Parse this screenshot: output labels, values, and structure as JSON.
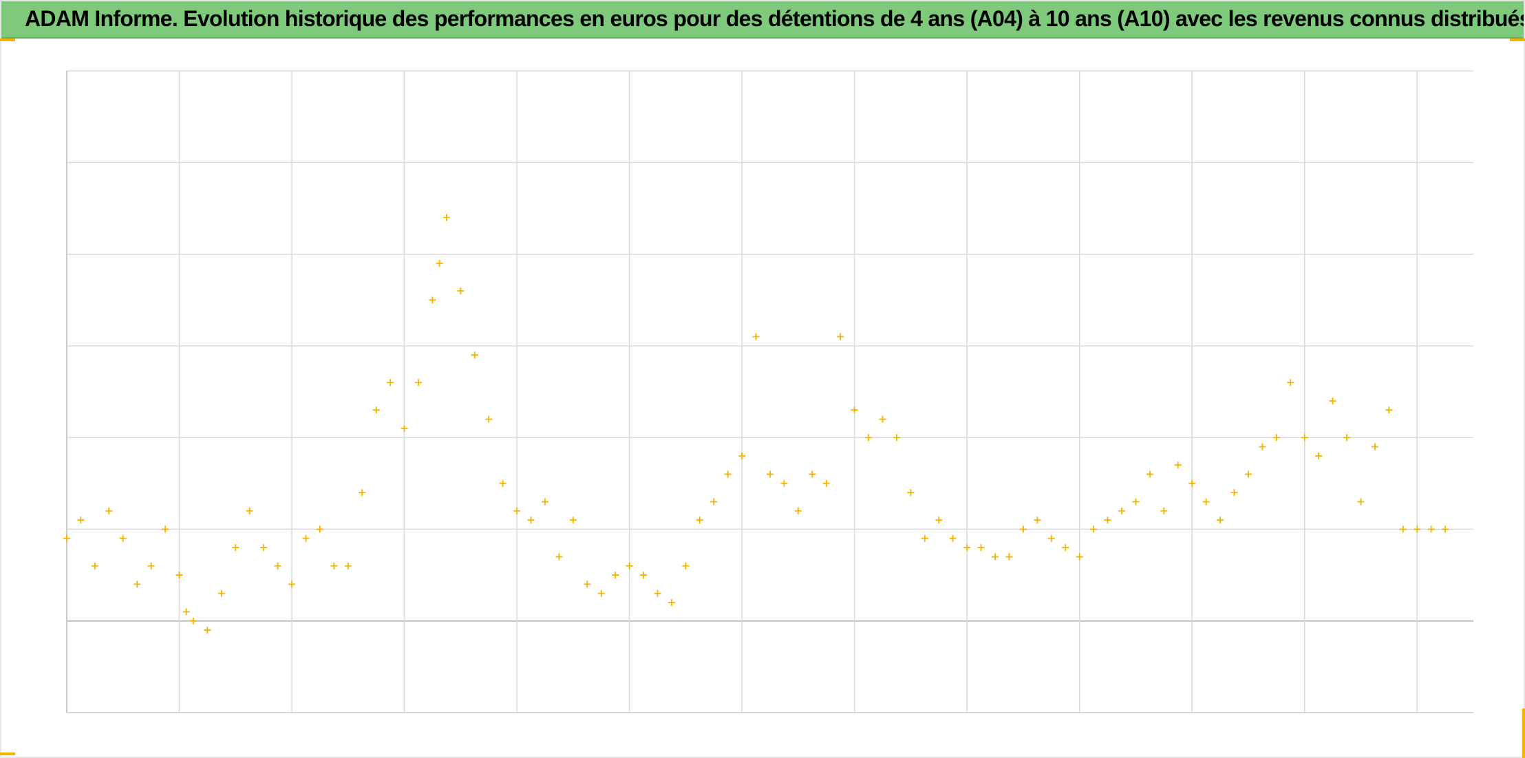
{
  "title": "ADAM Informe. Evolution historique des performances en euros pour des détentions de 4 ans (A04) à 10 ans (A10) avec les revenus connus distribués",
  "colors": {
    "title_bar": "#7ec97c",
    "series": "#f2b400",
    "grid": "#d9d9d9",
    "baseline": "#bfbfbf"
  },
  "chart_data": {
    "type": "scatter",
    "title": "ADAM Informe. Evolution historique des performances en euros pour des détentions de 4 ans (A04) à 10 ans (A10) avec les revenus connus distribués",
    "xlabel": "",
    "ylabel": "",
    "marker": "plus",
    "grid": true,
    "legend": "none",
    "xlim": [
      0,
      100
    ],
    "ylim": [
      -1,
      6
    ],
    "y_baseline": 0,
    "tick_labels_visible": false,
    "series": [
      {
        "x": [
          0,
          1,
          2,
          3,
          4,
          5,
          6,
          7,
          8,
          8.5,
          9,
          10,
          11,
          12,
          13,
          14,
          15,
          16,
          17,
          18,
          19,
          20,
          21,
          22,
          23,
          24,
          25,
          26,
          26.5,
          27,
          28,
          29,
          30,
          31,
          32,
          33,
          34,
          35,
          36,
          37,
          38,
          39,
          40,
          41,
          42,
          43,
          44,
          45,
          46,
          47,
          48,
          49,
          50,
          51,
          52,
          53,
          54,
          55,
          56,
          57,
          58,
          59,
          60,
          61,
          62,
          63,
          64,
          65,
          66,
          67,
          68,
          69,
          70,
          71,
          72,
          73,
          74,
          75,
          76,
          77,
          78,
          79,
          80,
          81,
          82,
          83,
          84,
          85,
          86,
          87,
          88,
          89,
          90,
          91,
          92,
          93,
          94,
          95,
          96,
          97,
          98
        ],
        "y": [
          0.9,
          1.1,
          0.6,
          1.2,
          0.9,
          0.4,
          0.6,
          1.0,
          0.5,
          0.1,
          0.0,
          -0.1,
          0.3,
          0.8,
          1.2,
          0.8,
          0.6,
          0.4,
          0.9,
          1.0,
          0.6,
          0.6,
          1.4,
          2.3,
          2.6,
          2.1,
          2.6,
          3.5,
          3.9,
          4.4,
          3.6,
          2.9,
          2.2,
          1.5,
          1.2,
          1.1,
          1.3,
          0.7,
          1.1,
          0.4,
          0.3,
          0.5,
          0.6,
          0.5,
          0.3,
          0.2,
          0.6,
          1.1,
          1.3,
          1.6,
          1.8,
          3.1,
          1.6,
          1.5,
          1.2,
          1.6,
          1.5,
          3.1,
          2.3,
          2.0,
          2.2,
          2.0,
          1.4,
          0.9,
          1.1,
          0.9,
          0.8,
          0.8,
          0.7,
          0.7,
          1.0,
          1.1,
          0.9,
          0.8,
          0.7,
          1.0,
          1.1,
          1.2,
          1.3,
          1.6,
          1.2,
          1.7,
          1.5,
          1.3,
          1.1,
          1.4,
          1.6,
          1.9,
          2.0,
          2.6,
          2.0,
          1.8,
          2.4,
          2.0,
          1.3,
          1.9,
          2.3,
          1.0,
          1.0,
          1.0,
          1.0
        ]
      }
    ]
  }
}
